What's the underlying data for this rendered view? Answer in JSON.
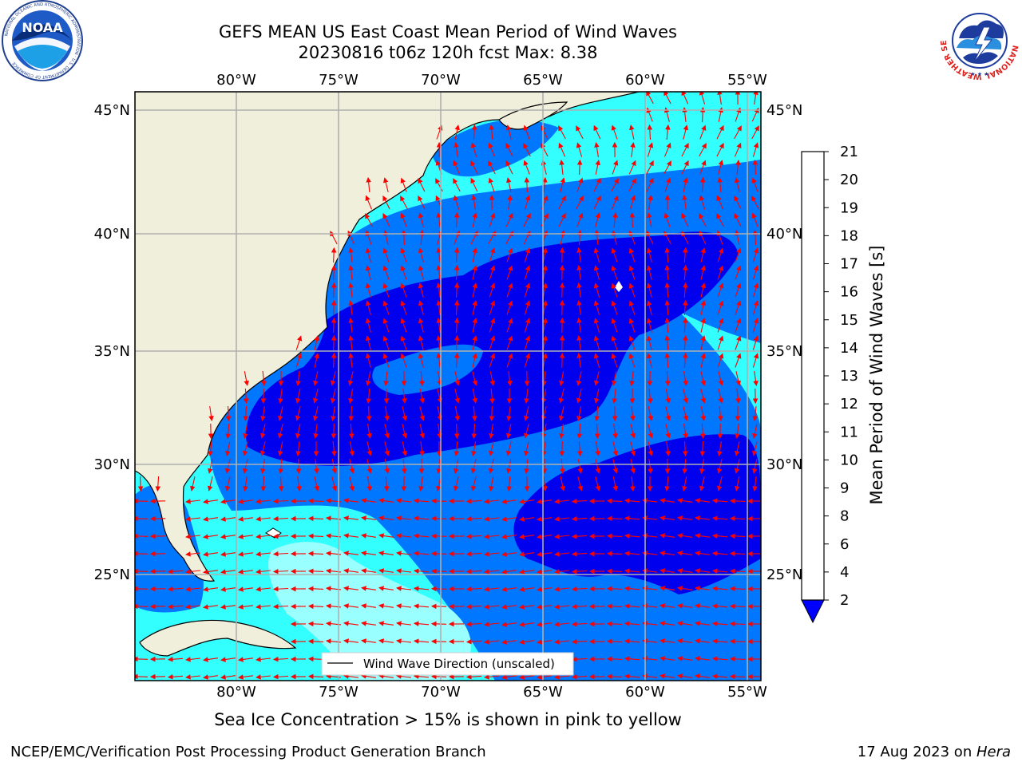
{
  "title_line1": "GEFS MEAN US East Coast Mean Period of Wind Waves",
  "title_line2": "20230816 t06z 120h fcst   Max: 8.38",
  "lon_labels": [
    "80°W",
    "75°W",
    "70°W",
    "65°W",
    "60°W",
    "55°W"
  ],
  "lat_labels": [
    "45°N",
    "40°N",
    "35°N",
    "30°N",
    "25°N"
  ],
  "legend_label": "Wind Wave Direction (unscaled)",
  "colorbar": {
    "label": "Mean Period of Wind Waves [s]",
    "ticks": [
      "2",
      "4",
      "6",
      "8",
      "9",
      "10",
      "11",
      "12",
      "13",
      "14",
      "15",
      "16",
      "17",
      "18",
      "19",
      "20",
      "21"
    ],
    "colors": [
      "#0077ff",
      "#00ccff",
      "#33ffff",
      "#99ffff",
      "#55ff88",
      "#00dd00",
      "#44cc00",
      "#88dd00",
      "#bbee00",
      "#dddd00",
      "#ffee00",
      "#ffcc00",
      "#ffaa00",
      "#ff8800",
      "#ff6600",
      "#ff3300",
      "#ff0000"
    ],
    "under_color": "#0000ff"
  },
  "caption": "Sea Ice Concentration > 15% is shown in pink to yellow",
  "footer_left": "NCEP/EMC/Verification Post Processing Product Generation Branch",
  "footer_date": "17 Aug 2023 on ",
  "footer_host": "Hera",
  "logos": {
    "noaa_text": "NOAA",
    "noaa_ring": "NATIONAL OCEANIC AND ATMOSPHERIC ADMINISTRATION · U.S. DEPARTMENT OF COMMERCE",
    "nws_ring": "NATIONAL WEATHER SERVICE"
  },
  "colors": {
    "land": "#efefdc",
    "arrow": "#ff0000",
    "grid": "#b0b0b0",
    "deep": "#0000ee"
  }
}
